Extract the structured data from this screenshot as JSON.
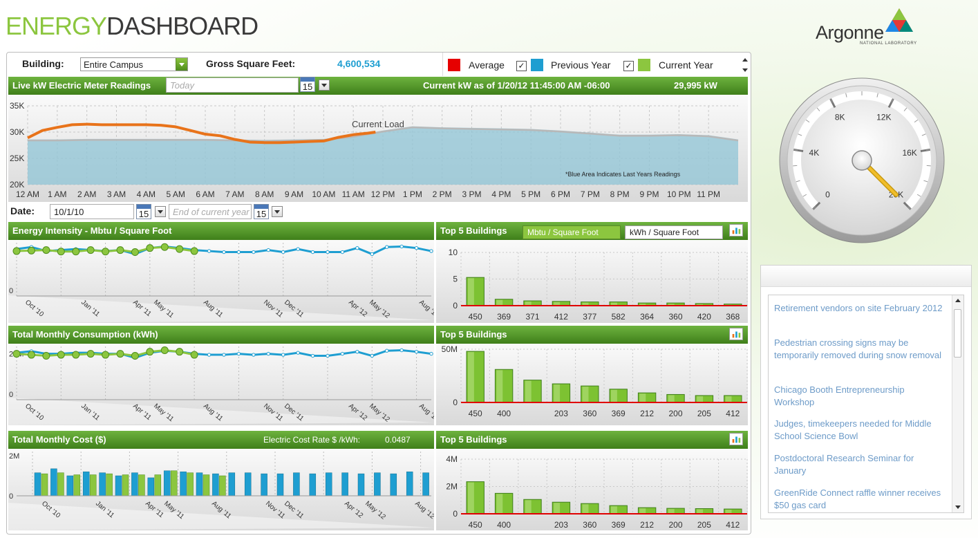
{
  "app": {
    "title_part1": "ENERGY",
    "title_part2": "DASHBOARD"
  },
  "logo": {
    "name": "Argonne",
    "subtitle": "NATIONAL LABORATORY"
  },
  "filters": {
    "building_label": "Building:",
    "building_value": "Entire Campus",
    "gsf_label": "Gross Square Feet:",
    "gsf_value": "4,600,534"
  },
  "legend": {
    "items": [
      {
        "label": "Average",
        "color": "#e60000",
        "checked": false
      },
      {
        "label": "Previous Year",
        "color": "#1e9ed1",
        "checked": true
      },
      {
        "label": "Current Year",
        "color": "#8cc63f",
        "checked": true
      }
    ]
  },
  "colors": {
    "accent_green": "#8cc63f",
    "header_green": "#4e8c1c",
    "blue": "#1e9ed1",
    "orange": "#e8731a",
    "link": "#6d9bc8"
  },
  "live": {
    "title": "Live kW Electric Meter Readings",
    "date_placeholder": "Today",
    "calendar_day": "15",
    "current_label": "Current kW as of 1/20/12 11:45:00 AM -06:00",
    "current_value": "29,995 kW"
  },
  "date_row": {
    "label": "Date:",
    "start_value": "10/1/10",
    "end_placeholder": "End of current year",
    "calendar_day": "15"
  },
  "gauge": {
    "value": 29995,
    "ticks": [
      "0",
      "4K",
      "8K",
      "12K",
      "16K",
      "20K"
    ]
  },
  "news": {
    "items": [
      "Retirement vendors on site February 2012",
      "Pedestrian crossing signs may be temporarily removed during snow removal",
      "Chicago Booth Entrepreneurship Workshop",
      "Judges, timekeepers needed for Middle School Science Bowl",
      "Postdoctoral Research Seminar for January",
      "GreenRide Connect raffle winner receives $50 gas card"
    ]
  },
  "chart_data": [
    {
      "id": "live_kw",
      "type": "line",
      "annotations": [
        "Current Load",
        "*Blue Area Indicates Last Years Readings"
      ],
      "y_ticks": [
        "35K",
        "30K",
        "25K",
        "20K"
      ],
      "ylim": [
        20000,
        35000
      ],
      "x_ticks": [
        "12 AM",
        "1 AM",
        "2 AM",
        "3 AM",
        "4 AM",
        "5 AM",
        "6 AM",
        "7 AM",
        "8 AM",
        "9 AM",
        "10 AM",
        "11 AM",
        "12 PM",
        "1 PM",
        "2 PM",
        "3 PM",
        "4 PM",
        "5 PM",
        "6 PM",
        "7 PM",
        "8 PM",
        "9 PM",
        "10 PM",
        "11 PM"
      ],
      "series": [
        {
          "name": "Previous Year",
          "color": "#1e9ed1",
          "x": [
            0,
            1,
            2,
            3,
            4,
            5,
            6,
            7,
            8,
            9,
            10,
            11,
            12,
            13,
            14,
            15,
            16,
            17,
            18,
            19,
            20,
            21,
            22,
            23,
            24
          ],
          "values": [
            28600,
            28600,
            28700,
            28700,
            28700,
            28700,
            28700,
            28600,
            28500,
            28600,
            28700,
            29300,
            30300,
            31100,
            30900,
            30800,
            30700,
            30600,
            30300,
            29900,
            29500,
            29500,
            29600,
            29400,
            28600
          ]
        },
        {
          "name": "Current Year",
          "color": "#e8731a",
          "x": [
            0,
            0.5,
            1,
            1.5,
            2,
            2.5,
            3,
            3.5,
            4,
            4.5,
            5,
            5.5,
            6,
            6.5,
            7,
            7.5,
            8,
            8.5,
            9,
            9.5,
            10,
            10.5,
            11,
            11.5,
            11.75
          ],
          "values": [
            28900,
            30300,
            30900,
            31400,
            31500,
            31400,
            31400,
            31400,
            31400,
            31300,
            31000,
            30300,
            29600,
            29300,
            28600,
            28100,
            28000,
            28000,
            28100,
            28200,
            28300,
            29000,
            29500,
            29800,
            29995
          ]
        }
      ]
    },
    {
      "id": "energy_intensity",
      "type": "line",
      "title": "Energy Intensity - Mbtu / Square Foot",
      "y_ticks": [
        "0"
      ],
      "x_ticks": [
        "Oct '10",
        "Jan '11",
        "Apr '11",
        "May '11",
        "Aug '11",
        "Nov '11",
        "Dec '11",
        "Apr '12",
        "May '12",
        "Aug '12"
      ],
      "series": [
        {
          "name": "Previous Year",
          "color": "#1e9ed1",
          "values": [
            0.82,
            0.86,
            0.78,
            0.8,
            0.82,
            0.8,
            0.78,
            0.8,
            0.72,
            0.84,
            0.87,
            0.84,
            0.8,
            0.78,
            0.76,
            0.76,
            0.76,
            0.8,
            0.76,
            0.82,
            0.76,
            0.76,
            0.76,
            0.84,
            0.72,
            0.86,
            0.87,
            0.84,
            0.78
          ]
        },
        {
          "name": "Current Year",
          "color": "#8cc63f",
          "values": [
            0.78,
            0.79,
            0.8,
            0.77,
            0.77,
            0.8,
            0.77,
            0.8,
            0.76,
            0.84,
            0.86,
            0.82,
            0.78
          ]
        }
      ]
    },
    {
      "id": "top5_intensity",
      "type": "bar",
      "title": "Top 5 Buildings",
      "tabs": [
        "Mbtu / Square Foot",
        "kWh / Square Foot"
      ],
      "y_ticks": [
        "10",
        "5",
        "0"
      ],
      "ylim": [
        0,
        10
      ],
      "categories": [
        "450",
        "369",
        "371",
        "412",
        "377",
        "582",
        "364",
        "360",
        "420",
        "368"
      ],
      "values": [
        5.3,
        1.2,
        0.9,
        0.8,
        0.7,
        0.7,
        0.5,
        0.5,
        0.4,
        0.3
      ],
      "average": 0
    },
    {
      "id": "monthly_consumption",
      "type": "line",
      "title": "Total Monthly Consumption (kWh)",
      "y_ticks": [
        "20M",
        "0"
      ],
      "x_ticks": [
        "Oct '10",
        "Jan '11",
        "Apr '11",
        "May '11",
        "Aug '11",
        "Nov '11",
        "Dec '11",
        "Apr '12",
        "May '12",
        "Aug '12"
      ],
      "series": [
        {
          "name": "Previous Year",
          "color": "#1e9ed1",
          "values": [
            0.82,
            0.85,
            0.8,
            0.8,
            0.82,
            0.82,
            0.8,
            0.8,
            0.72,
            0.82,
            0.86,
            0.84,
            0.8,
            0.78,
            0.78,
            0.8,
            0.78,
            0.8,
            0.78,
            0.82,
            0.76,
            0.76,
            0.8,
            0.84,
            0.76,
            0.86,
            0.87,
            0.84,
            0.8
          ]
        },
        {
          "name": "Current Year",
          "color": "#8cc63f",
          "values": [
            0.8,
            0.78,
            0.76,
            0.78,
            0.78,
            0.8,
            0.78,
            0.8,
            0.76,
            0.84,
            0.87,
            0.84,
            0.78
          ]
        }
      ]
    },
    {
      "id": "top5_consumption",
      "type": "bar",
      "title": "Top 5 Buildings",
      "y_ticks": [
        "50M",
        "0"
      ],
      "ylim": [
        0,
        50000000
      ],
      "categories": [
        "450",
        "400",
        "",
        "203",
        "360",
        "369",
        "212",
        "200",
        "205",
        "412"
      ],
      "values": [
        48000000,
        31000000,
        21000000,
        17500000,
        15500000,
        12500000,
        9000000,
        7500000,
        6500000,
        6500000
      ]
    },
    {
      "id": "monthly_cost",
      "type": "bar",
      "title": "Total Monthly Cost ($)",
      "rate_label": "Electric Cost Rate $ /kWh:",
      "rate_value": "0.0487",
      "y_ticks": [
        "2M",
        "0"
      ],
      "ylim": [
        0,
        2000000
      ],
      "x_ticks": [
        "Oct '10",
        "Jan '11",
        "Apr '11",
        "May '11",
        "Aug '11",
        "Nov '11",
        "Dec '11",
        "Apr '12",
        "May '12",
        "Aug '12"
      ],
      "series": [
        {
          "name": "Previous Year",
          "color": "#1e9ed1",
          "values": [
            1150000,
            1350000,
            1000000,
            1200000,
            1150000,
            1000000,
            1150000,
            900000,
            1250000,
            1200000,
            1150000,
            1100000,
            1150000,
            1150000,
            1100000,
            1100000,
            1150000,
            1100000,
            1150000,
            1150000,
            1100000,
            1150000,
            1100000,
            1200000,
            1150000,
            1100000
          ]
        },
        {
          "name": "Current Year",
          "color": "#8cc63f",
          "values": [
            1100000,
            1150000,
            1050000,
            1050000,
            1100000,
            1050000,
            1050000,
            1050000,
            1250000,
            1150000,
            1050000,
            1000000
          ]
        }
      ]
    },
    {
      "id": "top5_cost",
      "type": "bar",
      "title": "Top 5 Buildings",
      "y_ticks": [
        "4M",
        "2M",
        "0"
      ],
      "ylim": [
        0,
        4000000
      ],
      "categories": [
        "450",
        "400",
        "",
        "203",
        "360",
        "369",
        "212",
        "200",
        "205",
        "412"
      ],
      "values": [
        2350000,
        1500000,
        1050000,
        850000,
        750000,
        600000,
        450000,
        400000,
        380000,
        350000
      ]
    }
  ]
}
